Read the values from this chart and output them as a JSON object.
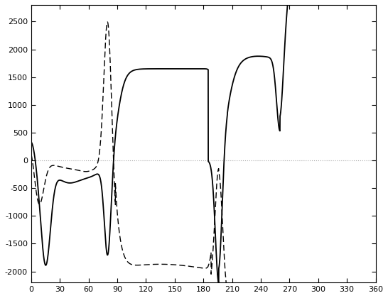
{
  "xlim": [
    0,
    360
  ],
  "ylim": [
    -2200,
    2800
  ],
  "xticks": [
    0,
    30,
    60,
    90,
    120,
    150,
    180,
    210,
    240,
    270,
    300,
    330,
    360
  ],
  "yticks": [
    -2000,
    -1500,
    -1000,
    -500,
    0,
    500,
    1000,
    1500,
    2000,
    2500
  ],
  "solid_color": "black",
  "dashed_color": "black",
  "dotted_color": "#aaaaaa",
  "background_color": "white",
  "linewidth_solid": 1.3,
  "linewidth_dashed": 1.0
}
